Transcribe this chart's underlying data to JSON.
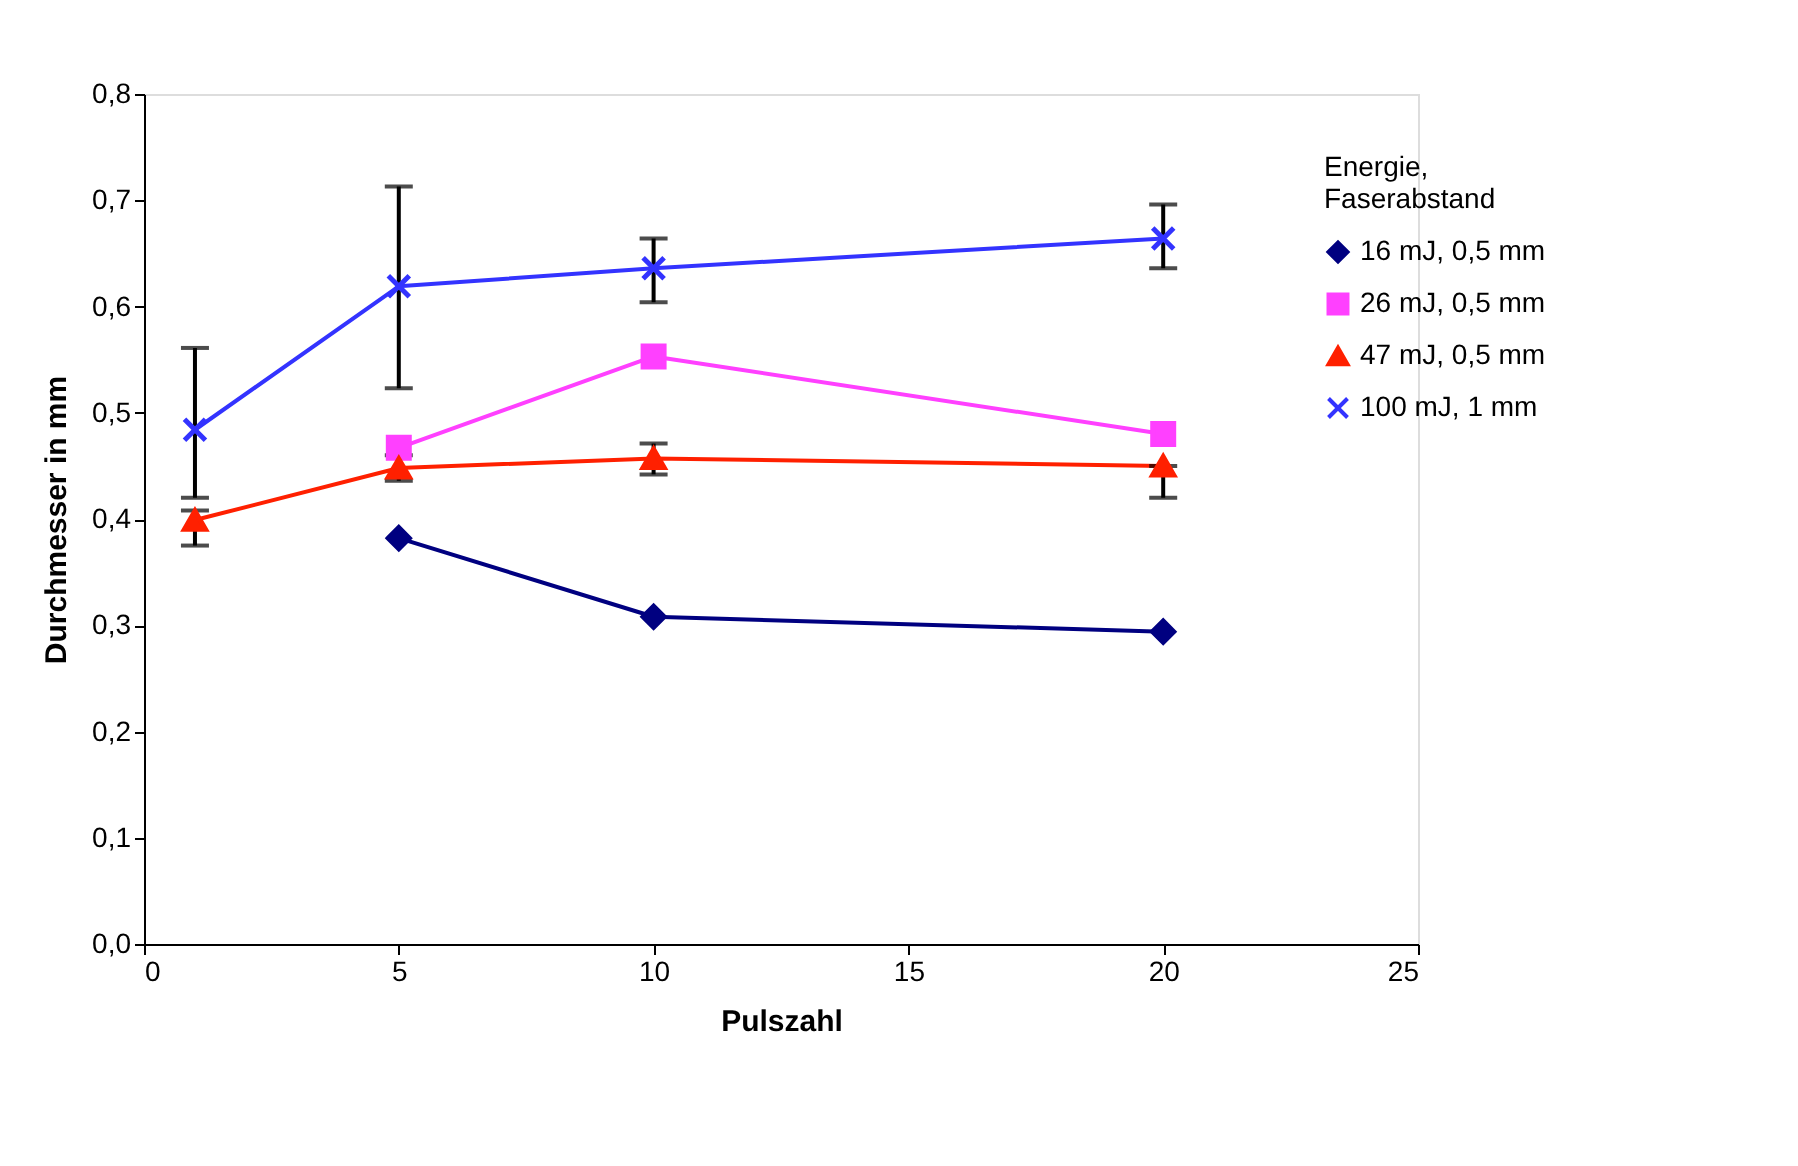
{
  "chart_data": {
    "type": "line",
    "xlabel": "Pulszahl",
    "ylabel": "Durchmesser in mm",
    "legend_title": "Energie, Faserabstand",
    "legend": "top right",
    "grid": false,
    "xlim": [
      0,
      25
    ],
    "xticks": [
      0,
      5,
      10,
      15,
      20,
      25
    ],
    "ylim": [
      0,
      0.8
    ],
    "yticks": [
      {
        "value": 0,
        "label": "0,0"
      },
      {
        "value": 0.1,
        "label": "0,1"
      },
      {
        "value": 0.2,
        "label": "0,2"
      },
      {
        "value": 0.3,
        "label": "0,3"
      },
      {
        "value": 0.4,
        "label": "0,4"
      },
      {
        "value": 0.5,
        "label": "0,5"
      },
      {
        "value": 0.6,
        "label": "0,6"
      },
      {
        "value": 0.7,
        "label": "0,7"
      },
      {
        "value": 0.8,
        "label": "0,8"
      }
    ],
    "series": [
      {
        "name": "16 mJ, 0,5 mm",
        "color": "#000080",
        "marker": "diamond",
        "x": [
          5,
          10,
          20
        ],
        "values": [
          0.382,
          0.308,
          0.294
        ]
      },
      {
        "name": "26 mJ, 0,5 mm",
        "color": "#ff40ff",
        "marker": "square",
        "x": [
          5,
          10,
          20
        ],
        "values": [
          0.467,
          0.553,
          0.48
        ]
      },
      {
        "name": "47 mJ, 0,5 mm",
        "color": "#ff2000",
        "marker": "triangle",
        "x": [
          1,
          5,
          10,
          20
        ],
        "values": [
          0.399,
          0.448,
          0.457,
          0.45
        ],
        "errors": [
          [
            0.375,
            0.408
          ],
          [
            0.436,
            0.46
          ],
          [
            0.442,
            0.471
          ],
          [
            0.42,
            0.45
          ]
        ]
      },
      {
        "name": "100 mJ, 1 mm",
        "color": "#3333ff",
        "marker": "cross",
        "x": [
          1,
          5,
          10,
          20
        ],
        "values": [
          0.484,
          0.619,
          0.636,
          0.664
        ],
        "errors": [
          [
            0.42,
            0.561
          ],
          [
            0.523,
            0.713
          ],
          [
            0.604,
            0.664
          ],
          [
            0.636,
            0.696
          ]
        ]
      }
    ]
  }
}
